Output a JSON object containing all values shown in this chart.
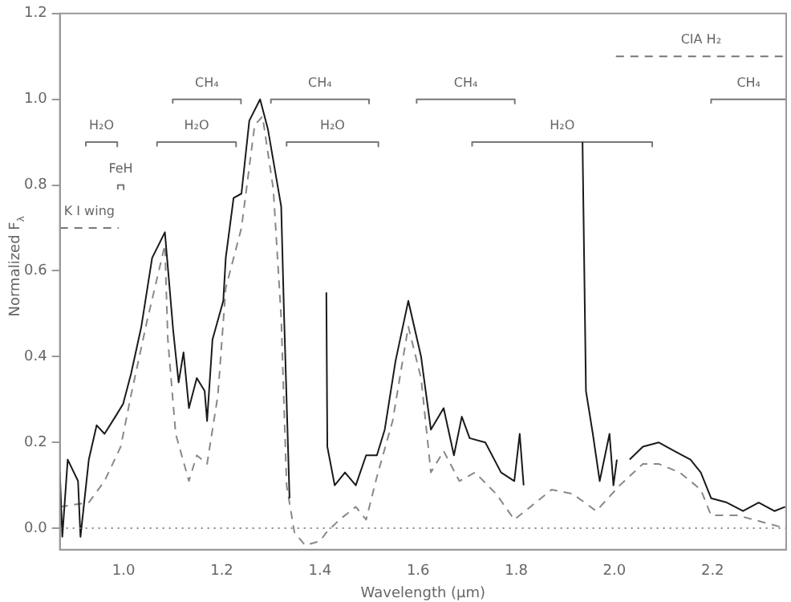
{
  "chart_data": {
    "type": "line",
    "xlabel": "Wavelength (µm)",
    "ylabel": "Normalized F$_{λ}$",
    "xlim": [
      0.87,
      2.35
    ],
    "xticks": [
      {
        "value": 1.0,
        "label": "1.0"
      },
      {
        "value": 1.2,
        "label": "1.2"
      },
      {
        "value": 1.4,
        "label": "1.4"
      },
      {
        "value": 1.6,
        "label": "1.6"
      },
      {
        "value": 1.8,
        "label": "1.8"
      },
      {
        "value": 2.0,
        "label": "2.0"
      },
      {
        "value": 2.2,
        "label": "2.2"
      }
    ],
    "ylim": [
      -0.05,
      1.2
    ],
    "yticks": [
      {
        "value": 0,
        "label": "0.0"
      },
      {
        "value": 0.2,
        "label": "0.2"
      },
      {
        "value": 0.4,
        "label": "0.4"
      },
      {
        "value": 0.6,
        "label": "0.6"
      },
      {
        "value": 0.8,
        "label": "0.8"
      },
      {
        "value": 1.0,
        "label": "1.0"
      },
      {
        "value": 1.2,
        "label": "1.2"
      }
    ],
    "grid": false,
    "legend": false,
    "marker": "none",
    "series": [
      {
        "color": "#1a1a1a",
        "line_style": "solid",
        "x": [
          0.87,
          0.875,
          0.886,
          0.907,
          0.912,
          0.929,
          0.945,
          0.961,
          0.983,
          0.999,
          1.015,
          1.036,
          1.058,
          1.084,
          1.101,
          1.112,
          1.122,
          1.133,
          1.149,
          1.165,
          1.17,
          1.181,
          1.203,
          1.208,
          1.224,
          1.24,
          1.256,
          1.278,
          1.294,
          1.321,
          1.327,
          1.338,
          1.345,
          1.35,
          1.355,
          1.36,
          1.365,
          1.37,
          1.375,
          1.38,
          1.385,
          1.39,
          1.395,
          1.4,
          1.405,
          1.413,
          1.415,
          1.43,
          1.451,
          1.473,
          1.494,
          1.516,
          1.532,
          1.554,
          1.58,
          1.606,
          1.626,
          1.652,
          1.673,
          1.689,
          1.705,
          1.737,
          1.769,
          1.796,
          1.807,
          1.815,
          1.819,
          1.83,
          1.84,
          1.85,
          1.86,
          1.87,
          1.88,
          1.89,
          1.9,
          1.91,
          1.92,
          1.93,
          1.935,
          1.942,
          1.956,
          1.97,
          1.99,
          1.998,
          2.005,
          2.018,
          2.031,
          2.058,
          2.09,
          2.122,
          2.155,
          2.176,
          2.197,
          2.229,
          2.262,
          2.294,
          2.326,
          2.348
        ],
        "values": [
          0.13,
          -0.02,
          0.16,
          0.11,
          -0.02,
          0.16,
          0.24,
          0.22,
          0.26,
          0.29,
          0.36,
          0.47,
          0.63,
          0.69,
          0.46,
          0.34,
          0.41,
          0.28,
          0.35,
          0.32,
          0.25,
          0.44,
          0.53,
          0.63,
          0.77,
          0.78,
          0.95,
          1.0,
          0.93,
          0.75,
          0.49,
          0.07,
          null,
          null,
          null,
          null,
          null,
          null,
          null,
          null,
          null,
          null,
          null,
          null,
          null,
          0.55,
          0.19,
          0.1,
          0.13,
          0.1,
          0.17,
          0.17,
          0.23,
          0.39,
          0.53,
          0.4,
          0.23,
          0.28,
          0.17,
          0.26,
          0.21,
          0.2,
          0.13,
          0.11,
          0.22,
          0.1,
          null,
          null,
          null,
          null,
          null,
          null,
          null,
          null,
          null,
          null,
          null,
          null,
          0.9,
          0.32,
          0.22,
          0.11,
          0.22,
          0.1,
          0.16,
          null,
          0.16,
          0.19,
          0.2,
          0.18,
          0.16,
          0.13,
          0.07,
          0.06,
          0.04,
          0.06,
          0.04,
          0.05
        ]
      },
      {
        "color": "#888888",
        "line_style": "dashed",
        "x": [
          0.87,
          0.929,
          0.961,
          0.994,
          1.015,
          1.047,
          1.084,
          1.09,
          1.106,
          1.133,
          1.149,
          1.17,
          1.192,
          1.208,
          1.24,
          1.267,
          1.283,
          1.305,
          1.321,
          1.332,
          1.348,
          1.37,
          1.4,
          1.413,
          1.44,
          1.473,
          1.494,
          1.516,
          1.548,
          1.58,
          1.606,
          1.626,
          1.652,
          1.684,
          1.716,
          1.759,
          1.796,
          1.829,
          1.872,
          1.915,
          1.963,
          2.011,
          2.058,
          2.09,
          2.133,
          2.176,
          2.197,
          2.251,
          2.348
        ],
        "values": [
          0.05,
          0.06,
          0.11,
          0.19,
          0.31,
          0.48,
          0.66,
          0.44,
          0.22,
          0.11,
          0.17,
          0.15,
          0.31,
          0.56,
          0.7,
          0.94,
          0.96,
          0.79,
          0.49,
          0.1,
          -0.01,
          -0.04,
          -0.03,
          -0.01,
          0.02,
          0.05,
          0.02,
          0.12,
          0.25,
          0.47,
          0.35,
          0.13,
          0.18,
          0.11,
          0.13,
          0.08,
          0.02,
          0.05,
          0.09,
          0.08,
          0.04,
          0.1,
          0.15,
          0.15,
          0.13,
          0.09,
          0.03,
          0.03,
          0.0
        ]
      },
      {
        "name": "H₂O",
        "color": "#777777",
        "line_style": "solid",
        "x": [
          0.923,
          0.923,
          0.987,
          0.987
        ],
        "values": [
          0.89,
          0.9,
          0.9,
          0.89
        ]
      },
      {
        "name": "H₂O",
        "color": "#777777",
        "line_style": "solid",
        "x": [
          1.068,
          1.068,
          1.229,
          1.229
        ],
        "values": [
          0.89,
          0.9,
          0.9,
          0.89
        ]
      },
      {
        "name": "CH₄",
        "color": "#777777",
        "line_style": "solid",
        "x": [
          1.1,
          1.1,
          1.239,
          1.239
        ],
        "values": [
          0.99,
          1.0,
          1.0,
          0.99
        ]
      },
      {
        "name": "CH₄",
        "color": "#777777",
        "line_style": "solid",
        "x": [
          1.3,
          1.3,
          1.5,
          1.5
        ],
        "values": [
          0.99,
          1.0,
          1.0,
          0.99
        ]
      },
      {
        "name": "H₂O",
        "color": "#777777",
        "line_style": "solid",
        "x": [
          1.332,
          1.332,
          1.519,
          1.519
        ],
        "values": [
          0.89,
          0.9,
          0.9,
          0.89
        ]
      },
      {
        "name": "CH₄",
        "color": "#777777",
        "line_style": "solid",
        "x": [
          1.597,
          1.597,
          1.797,
          1.797
        ],
        "values": [
          0.99,
          1.0,
          1.0,
          0.99
        ]
      },
      {
        "name": "H₂O",
        "color": "#777777",
        "line_style": "solid",
        "x": [
          1.71,
          1.71,
          2.077,
          2.077
        ],
        "values": [
          0.89,
          0.9,
          0.9,
          0.89
        ]
      },
      {
        "name": "CH₄",
        "color": "#777777",
        "line_style": "solid",
        "x": [
          2.197,
          2.197,
          2.35
        ],
        "values": [
          0.99,
          1.0,
          1.0
        ]
      },
      {
        "name": "CIA H₂",
        "color": "#777777",
        "line_style": "dashed",
        "x": [
          2.003,
          2.35
        ],
        "values": [
          1.1,
          1.1
        ]
      },
      {
        "name": "K I wing",
        "color": "#777777",
        "line_style": "dashed",
        "x": [
          0.87,
          0.99
        ],
        "values": [
          0.7,
          0.7
        ]
      },
      {
        "name": "FeH",
        "color": "#777777",
        "line_style": "solid",
        "x": [
          0.988,
          0.988,
          1.0,
          1.0
        ],
        "values": [
          0.79,
          0.8,
          0.8,
          0.79
        ]
      }
    ],
    "ref_lines": [
      {
        "axis": "y",
        "value": 0,
        "color": "#888888",
        "line_style": "dotted"
      }
    ]
  }
}
